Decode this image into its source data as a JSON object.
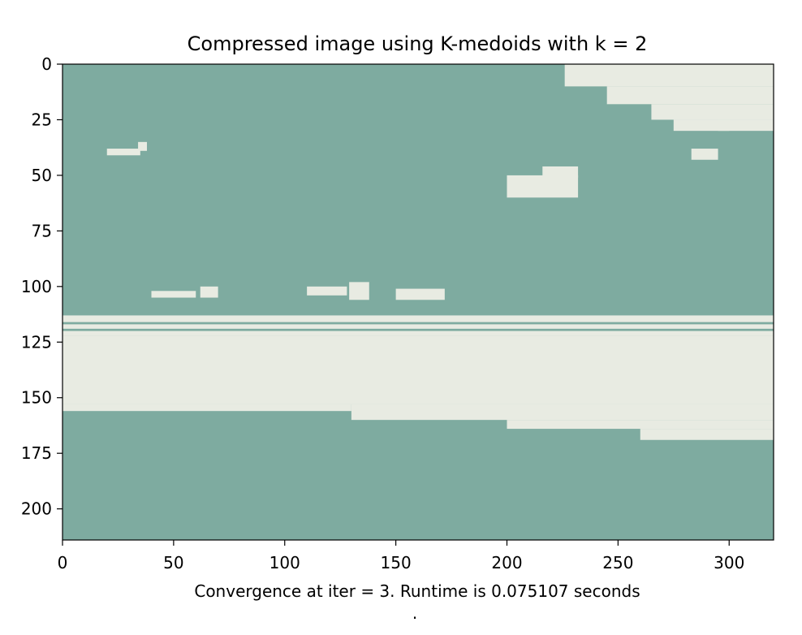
{
  "chart_data": {
    "type": "heatmap",
    "title": "Compressed image using K-medoids with k = 2",
    "xlabel": "Convergence at iter = 3. Runtime is 0.075107 seconds",
    "footnote": ".",
    "x_ticks": [
      0,
      50,
      100,
      150,
      200,
      250,
      300
    ],
    "y_ticks": [
      0,
      25,
      50,
      75,
      100,
      125,
      150,
      175,
      200
    ],
    "xlim": [
      0,
      320
    ],
    "ylim": [
      214,
      0
    ],
    "cluster_colors": [
      "#7eaba0",
      "#e8ebe2"
    ],
    "background_cluster": 0,
    "light_regions": [
      {
        "x": [
          0,
          320
        ],
        "y": [
          122,
          153
        ]
      },
      {
        "x": [
          0,
          130
        ],
        "y": [
          153,
          156
        ]
      },
      {
        "x": [
          130,
          320
        ],
        "y": [
          153,
          160
        ]
      },
      {
        "x": [
          200,
          320
        ],
        "y": [
          160,
          164
        ]
      },
      {
        "x": [
          260,
          320
        ],
        "y": [
          164,
          169
        ]
      },
      {
        "x": [
          226,
          320
        ],
        "y": [
          0,
          10
        ]
      },
      {
        "x": [
          245,
          320
        ],
        "y": [
          10,
          18
        ]
      },
      {
        "x": [
          265,
          320
        ],
        "y": [
          18,
          25
        ]
      },
      {
        "x": [
          295,
          320
        ],
        "y": [
          25,
          30
        ]
      },
      {
        "x": [
          275,
          300
        ],
        "y": [
          25,
          30
        ]
      },
      {
        "x": [
          283,
          295
        ],
        "y": [
          38,
          43
        ]
      },
      {
        "x": [
          200,
          232
        ],
        "y": [
          50,
          60
        ]
      },
      {
        "x": [
          216,
          232
        ],
        "y": [
          46,
          51
        ]
      },
      {
        "x": [
          34,
          38
        ],
        "y": [
          35,
          39
        ]
      },
      {
        "x": [
          20,
          35
        ],
        "y": [
          38,
          41
        ]
      },
      {
        "x": [
          129,
          138
        ],
        "y": [
          98,
          106
        ]
      },
      {
        "x": [
          110,
          128
        ],
        "y": [
          100,
          104
        ]
      },
      {
        "x": [
          150,
          172
        ],
        "y": [
          101,
          106
        ]
      },
      {
        "x": [
          40,
          60
        ],
        "y": [
          102,
          105
        ]
      },
      {
        "x": [
          62,
          70
        ],
        "y": [
          100,
          105
        ]
      },
      {
        "x": [
          0,
          320
        ],
        "y": [
          113,
          116
        ]
      },
      {
        "x": [
          0,
          320
        ],
        "y": [
          117,
          119
        ]
      },
      {
        "x": [
          0,
          320
        ],
        "y": [
          120,
          122
        ]
      }
    ]
  }
}
